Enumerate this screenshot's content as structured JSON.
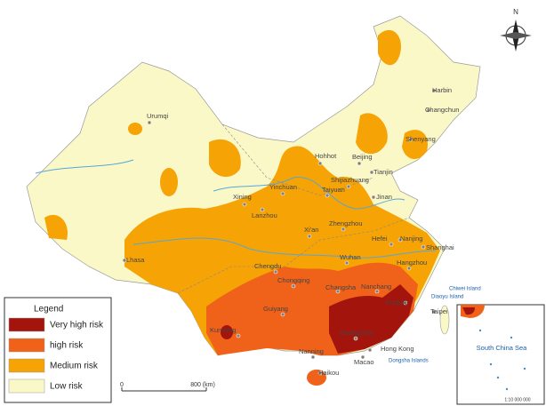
{
  "compass": "N",
  "legend": {
    "title": "Legend",
    "items": [
      {
        "label": "Very high risk",
        "color": "#a3150c"
      },
      {
        "label": "high risk",
        "color": "#f0621a"
      },
      {
        "label": "Medium risk",
        "color": "#f6a305"
      },
      {
        "label": "Low risk",
        "color": "#fbf8c8"
      }
    ]
  },
  "cities": [
    "Urumqi",
    "Harbin",
    "Changchun",
    "Shenyang",
    "Hohhot",
    "Beijing",
    "Tianjin",
    "Shijiazhuang",
    "Yinchuan",
    "Taiyuan",
    "Xining",
    "Lanzhou",
    "Jinan",
    "Xi'an",
    "Zhengzhou",
    "Lhasa",
    "Hefei",
    "Nanjing",
    "Shanghai",
    "Wuhan",
    "Hangzhou",
    "Chengdu",
    "Chongqing",
    "Changsha",
    "Nanchang",
    "Fuzhou",
    "Taipei",
    "Guiyang",
    "Kunming",
    "Guangzhou",
    "Nanning",
    "Hong Kong",
    "Macao",
    "Haikou"
  ],
  "islands": [
    "Chiwei Island",
    "Diaoyu Island",
    "Dongsha Islands"
  ],
  "inset": {
    "label": "South China Sea",
    "scale": "1:10 000 000"
  },
  "scale_bar": {
    "start": "0",
    "end": "800 (km)"
  }
}
